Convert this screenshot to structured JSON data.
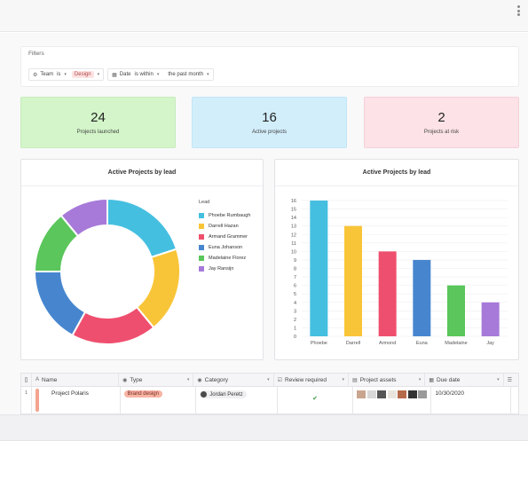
{
  "filters": {
    "title": "Filters",
    "team": {
      "field": "Team",
      "op": "is",
      "value": "Design"
    },
    "date": {
      "field": "Date",
      "op": "is within",
      "value": "the past month"
    }
  },
  "kpis": [
    {
      "value": "24",
      "label": "Projects launched",
      "color": "#d3f5c9"
    },
    {
      "value": "16",
      "label": "Active projects",
      "color": "#d2eefb"
    },
    {
      "value": "2",
      "label": "Projects at risk",
      "color": "#fde2e7"
    }
  ],
  "donut_panel": {
    "title": "Active Projects by lead",
    "legend_title": "Lead"
  },
  "bar_panel": {
    "title": "Active Projects by lead"
  },
  "chart_data": [
    {
      "type": "pie",
      "title": "Active Projects by lead",
      "legend_title": "Lead",
      "categories": [
        "Phoebe Rumbaugh",
        "Darrell Hazan",
        "Armand Grammer",
        "Euna Johanson",
        "Madelaine Florez",
        "Jay Ransijn"
      ],
      "values": [
        20,
        19,
        19,
        17,
        14,
        11
      ],
      "colors": [
        "#45bfe0",
        "#f9c538",
        "#ef4f6e",
        "#4786cf",
        "#5ac65b",
        "#a77ad9"
      ]
    },
    {
      "type": "bar",
      "title": "Active Projects by lead",
      "categories": [
        "Phoebe",
        "Darrell",
        "Armond",
        "Euna",
        "Madelaine",
        "Jay"
      ],
      "values": [
        16,
        13,
        10,
        9,
        6,
        4
      ],
      "colors": [
        "#45bfe0",
        "#f9c538",
        "#ef4f6e",
        "#4786cf",
        "#5ac65b",
        "#a77ad9"
      ],
      "ylim": [
        0,
        16
      ],
      "yticks": [
        0,
        1,
        2,
        3,
        4,
        5,
        6,
        7,
        8,
        9,
        10,
        11,
        12,
        13,
        14,
        15,
        16
      ],
      "grid": true
    }
  ],
  "table": {
    "columns": [
      "Name",
      "Type",
      "Category",
      "Review required",
      "Project assets",
      "Due date"
    ],
    "rows": [
      {
        "num": "1",
        "name": "Project Polaris",
        "type": "Brand design",
        "category": "Jordan Peretz",
        "review": "✔",
        "due": "10/30/2020"
      }
    ]
  }
}
